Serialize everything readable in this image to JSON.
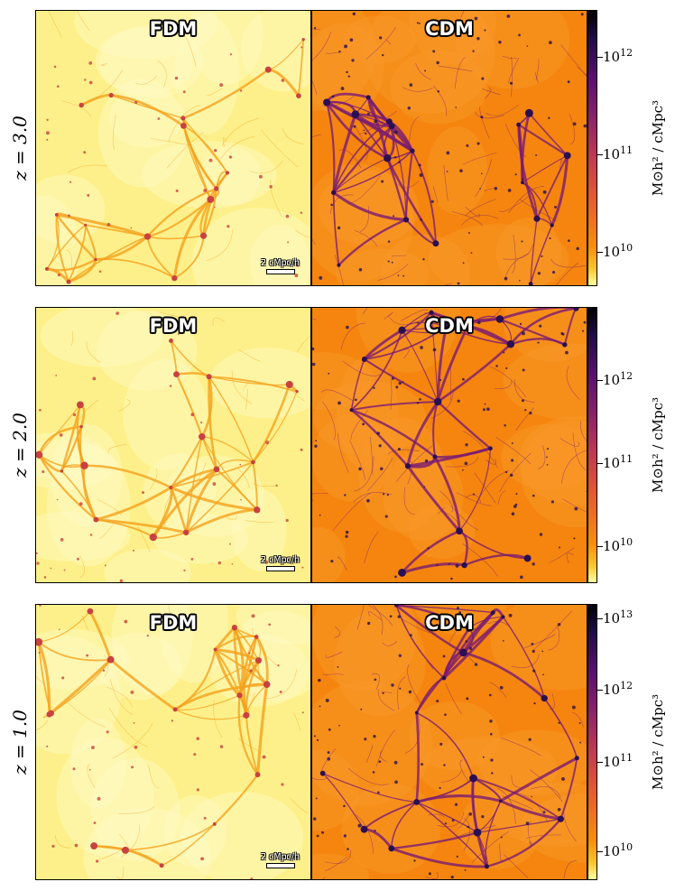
{
  "rows": [
    {
      "redshift_label": "z = 3.0",
      "left_title": "FDM",
      "right_title": "CDM",
      "scalebar_label": "2 cMpc/h",
      "colorbar_ticks": [
        {
          "base": "10",
          "exp": "10"
        },
        {
          "base": "10",
          "exp": "11"
        },
        {
          "base": "10",
          "exp": "12"
        }
      ],
      "colorbar_label": "M⊙h² / cMpc³"
    },
    {
      "redshift_label": "z = 2.0",
      "left_title": "FDM",
      "right_title": "CDM",
      "scalebar_label": "2 cMpc/h",
      "colorbar_ticks": [
        {
          "base": "10",
          "exp": "10"
        },
        {
          "base": "10",
          "exp": "11"
        },
        {
          "base": "10",
          "exp": "12"
        }
      ],
      "colorbar_label": "M⊙h² / cMpc³"
    },
    {
      "redshift_label": "z = 1.0",
      "left_title": "FDM",
      "right_title": "CDM",
      "scalebar_label": "2 cMpc/h",
      "colorbar_ticks": [
        {
          "base": "10",
          "exp": "10"
        },
        {
          "base": "10",
          "exp": "11"
        },
        {
          "base": "10",
          "exp": "12"
        },
        {
          "base": "10",
          "exp": "13"
        }
      ],
      "colorbar_label": "M⊙h² / cMpc³"
    }
  ],
  "colors": {
    "fdm_background": "#fdf08a",
    "fdm_filament": "#f4a11c",
    "fdm_node": "#c8423f",
    "cdm_background": "#f5850e",
    "cdm_filament": "#7a1a73",
    "cdm_node": "#2a0f52"
  }
}
